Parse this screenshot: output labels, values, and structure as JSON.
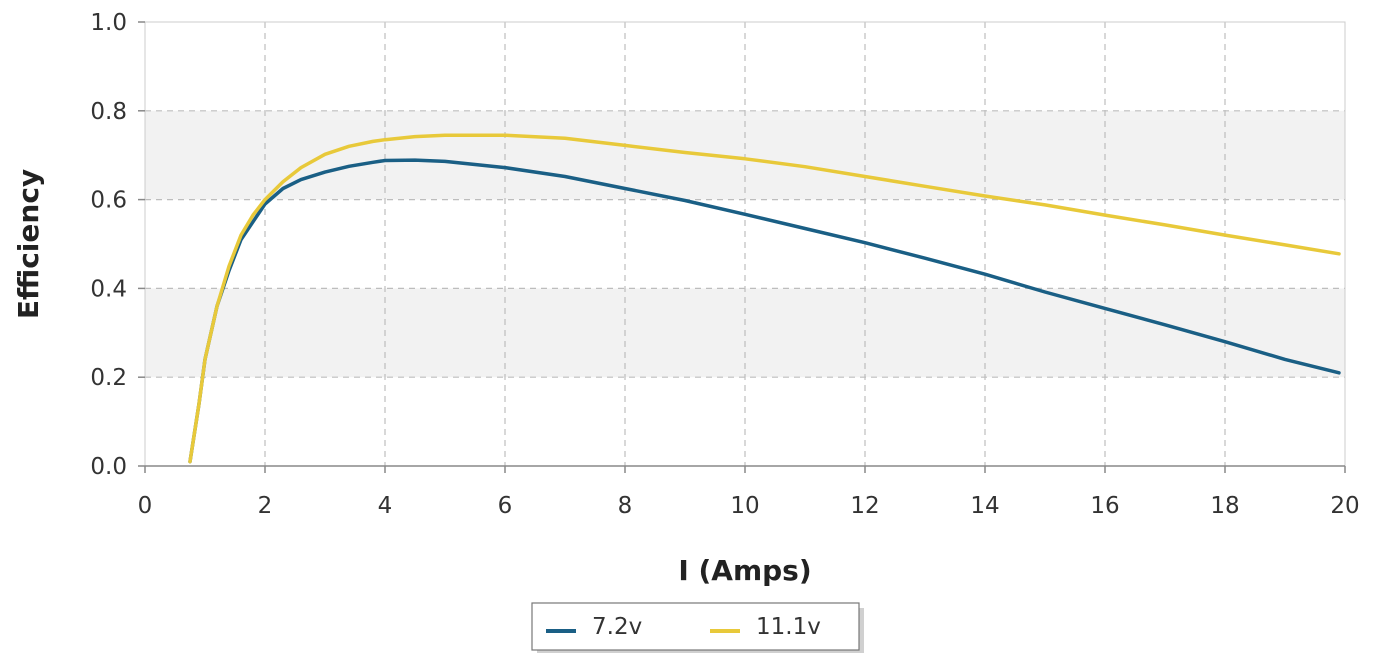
{
  "chart_data": {
    "type": "line",
    "title": "",
    "xlabel": "I (Amps)",
    "ylabel": "Efficiency",
    "xlim": [
      0,
      20
    ],
    "ylim": [
      0.0,
      1.0
    ],
    "x_ticks": [
      "0",
      "2",
      "4",
      "6",
      "8",
      "10",
      "12",
      "14",
      "16",
      "18",
      "20"
    ],
    "y_ticks": [
      "0.0",
      "0.2",
      "0.4",
      "0.6",
      "0.8",
      "1.0"
    ],
    "grid": true,
    "legend_position": "bottom",
    "series": [
      {
        "name": "7.2v",
        "color": "#1a5f85",
        "x": [
          0.75,
          0.9,
          1.0,
          1.2,
          1.4,
          1.6,
          1.8,
          2.0,
          2.3,
          2.6,
          3.0,
          3.4,
          3.8,
          4.0,
          4.5,
          5.0,
          6.0,
          7.0,
          8.0,
          9.0,
          10.0,
          11.0,
          12.0,
          13.0,
          14.0,
          15.0,
          16.0,
          17.0,
          18.0,
          19.0,
          19.9
        ],
        "y": [
          0.01,
          0.14,
          0.24,
          0.36,
          0.44,
          0.51,
          0.55,
          0.59,
          0.625,
          0.645,
          0.662,
          0.675,
          0.684,
          0.688,
          0.689,
          0.686,
          0.672,
          0.652,
          0.625,
          0.598,
          0.567,
          0.535,
          0.503,
          0.468,
          0.432,
          0.392,
          0.355,
          0.318,
          0.28,
          0.24,
          0.21
        ]
      },
      {
        "name": "11.1v",
        "color": "#e8c93a",
        "x": [
          0.75,
          0.9,
          1.0,
          1.2,
          1.4,
          1.6,
          1.8,
          2.0,
          2.3,
          2.6,
          3.0,
          3.4,
          3.8,
          4.0,
          4.5,
          5.0,
          6.0,
          7.0,
          8.0,
          9.0,
          10.0,
          11.0,
          12.0,
          13.0,
          14.0,
          15.0,
          16.0,
          17.0,
          18.0,
          19.0,
          19.9
        ],
        "y": [
          0.01,
          0.14,
          0.24,
          0.36,
          0.45,
          0.52,
          0.565,
          0.6,
          0.64,
          0.672,
          0.702,
          0.72,
          0.731,
          0.735,
          0.742,
          0.745,
          0.745,
          0.738,
          0.722,
          0.706,
          0.692,
          0.674,
          0.652,
          0.63,
          0.608,
          0.588,
          0.565,
          0.543,
          0.52,
          0.498,
          0.478
        ]
      }
    ],
    "colors": {
      "band": "#f2f2f2",
      "grid": "#bdbdbd",
      "plot_border": "#cccccc",
      "axis": "#888888"
    }
  }
}
